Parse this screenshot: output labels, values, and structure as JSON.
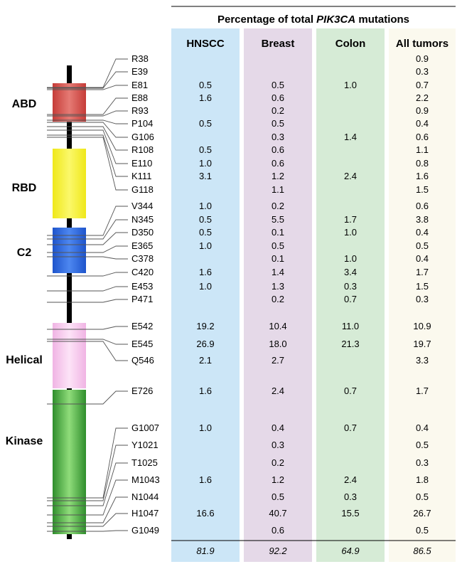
{
  "header": {
    "title_prefix": "Percentage of total ",
    "title_gene": "PIK3CA",
    "title_suffix": " mutations"
  },
  "columns": [
    {
      "label": "HNSCC",
      "color": "#cce6f7"
    },
    {
      "label": "Breast",
      "color": "#e5d9e8"
    },
    {
      "label": "Colon",
      "color": "#d6ebd6"
    },
    {
      "label": "All tumors",
      "color": "#fbf9ee"
    }
  ],
  "domains": [
    {
      "label": "ABD",
      "color": "#d9534f"
    },
    {
      "label": "RBD",
      "color": "#f5f233"
    },
    {
      "label": "C2",
      "color": "#2f6de0"
    },
    {
      "label": "Helical",
      "color": "#f7c7ee"
    },
    {
      "label": "Kinase",
      "color": "#44a840"
    }
  ],
  "mutations": [
    {
      "name": "R38",
      "values": [
        "",
        "",
        "",
        "0.9"
      ]
    },
    {
      "name": "E39",
      "values": [
        "",
        "",
        "",
        "0.3"
      ]
    },
    {
      "name": "E81",
      "values": [
        "0.5",
        "0.5",
        "1.0",
        "0.7"
      ]
    },
    {
      "name": "E88",
      "values": [
        "1.6",
        "0.6",
        "",
        "2.2"
      ]
    },
    {
      "name": "R93",
      "values": [
        "",
        "0.2",
        "",
        "0.9"
      ]
    },
    {
      "name": "P104",
      "values": [
        "0.5",
        "0.5",
        "",
        "0.4"
      ]
    },
    {
      "name": "G106",
      "values": [
        "",
        "0.3",
        "1.4",
        "0.6"
      ]
    },
    {
      "name": "R108",
      "values": [
        "0.5",
        "0.6",
        "",
        "1.1"
      ]
    },
    {
      "name": "E110",
      "values": [
        "1.0",
        "0.6",
        "",
        "0.8"
      ]
    },
    {
      "name": "K111",
      "values": [
        "3.1",
        "1.2",
        "2.4",
        "1.6"
      ]
    },
    {
      "name": "G118",
      "values": [
        "",
        "1.1",
        "",
        "1.5"
      ]
    },
    {
      "name": "V344",
      "values": [
        "1.0",
        "0.2",
        "",
        "0.6"
      ]
    },
    {
      "name": "N345",
      "values": [
        "0.5",
        "5.5",
        "1.7",
        "3.8"
      ]
    },
    {
      "name": "D350",
      "values": [
        "0.5",
        "0.1",
        "1.0",
        "0.4"
      ]
    },
    {
      "name": "E365",
      "values": [
        "1.0",
        "0.5",
        "",
        "0.5"
      ]
    },
    {
      "name": "C378",
      "values": [
        "",
        "0.1",
        "1.0",
        "0.4"
      ]
    },
    {
      "name": "C420",
      "values": [
        "1.6",
        "1.4",
        "3.4",
        "1.7"
      ]
    },
    {
      "name": "E453",
      "values": [
        "1.0",
        "1.3",
        "0.3",
        "1.5"
      ]
    },
    {
      "name": "P471",
      "values": [
        "",
        "0.2",
        "0.7",
        "0.3"
      ]
    },
    {
      "name": "E542",
      "values": [
        "19.2",
        "10.4",
        "11.0",
        "10.9"
      ]
    },
    {
      "name": "E545",
      "values": [
        "26.9",
        "18.0",
        "21.3",
        "19.7"
      ]
    },
    {
      "name": "Q546",
      "values": [
        "2.1",
        "2.7",
        "",
        "3.3"
      ]
    },
    {
      "name": "E726",
      "values": [
        "1.6",
        "2.4",
        "0.7",
        "1.7"
      ]
    },
    {
      "name": "G1007",
      "values": [
        "1.0",
        "0.4",
        "0.7",
        "0.4"
      ]
    },
    {
      "name": "Y1021",
      "values": [
        "",
        "0.3",
        "",
        "0.5"
      ]
    },
    {
      "name": "T1025",
      "values": [
        "",
        "0.2",
        "",
        "0.3"
      ]
    },
    {
      "name": "M1043",
      "values": [
        "1.6",
        "1.2",
        "2.4",
        "1.8"
      ]
    },
    {
      "name": "N1044",
      "values": [
        "",
        "0.5",
        "0.3",
        "0.5"
      ]
    },
    {
      "name": "H1047",
      "values": [
        "16.6",
        "40.7",
        "15.5",
        "26.7"
      ]
    },
    {
      "name": "G1049",
      "values": [
        "",
        "0.6",
        "",
        "0.5"
      ]
    }
  ],
  "totals": [
    "81.9",
    "92.2",
    "64.9",
    "86.5"
  ]
}
